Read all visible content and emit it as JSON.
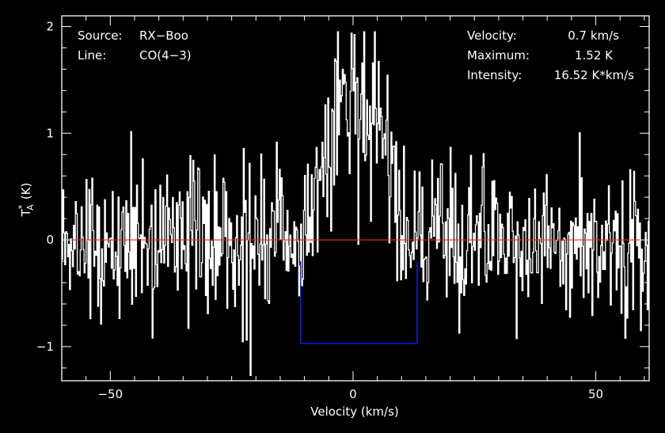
{
  "chart_data": {
    "type": "line",
    "xlabel": "Velocity (km/s)",
    "ylabel": "T*A (K)",
    "ylabel_parts": {
      "main": "T",
      "sup": "*",
      "sub": "A",
      "unit": "(K)"
    },
    "xlim": [
      -60,
      61
    ],
    "ylim": [
      -1.32,
      2.1
    ],
    "x_ticks": [
      -50,
      0,
      50
    ],
    "x_tick_labels": [
      "−50",
      "0",
      "50"
    ],
    "y_ticks": [
      -1,
      0,
      1,
      2
    ],
    "y_tick_labels": [
      "−1",
      "0",
      "1",
      "2"
    ],
    "x_minor_step": 5,
    "y_minor_step": 0.2,
    "grid": false,
    "info_left": [
      {
        "key": "Source:",
        "value": "RX−Boo"
      },
      {
        "key": "Line:",
        "value": "CO(4−3)"
      }
    ],
    "info_right": [
      {
        "key": "Velocity:",
        "value": "0.7 km/s"
      },
      {
        "key": "Maximum:",
        "value": "1.52 K"
      },
      {
        "key": "Intensity:",
        "value": "16.52 K*km/s"
      }
    ],
    "baseline": {
      "y": 0,
      "color": "#ff2020"
    },
    "window": {
      "x_start": -10.8,
      "x_end": 13.2,
      "y": -0.97,
      "color": "#1a1aff"
    },
    "series": [
      {
        "color": "#ffffff",
        "profile": {
          "center": 0.7,
          "peak": 1.52,
          "half_width": 10.5
        },
        "noise_rms": 0.37,
        "channel_width": 0.2
      }
    ],
    "colors": {
      "background": "#000000",
      "axes": "#ffffff",
      "text": "#ffffff"
    }
  }
}
